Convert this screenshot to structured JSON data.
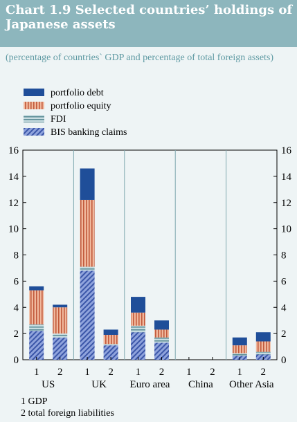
{
  "title": "Chart 1.9 Selected countries’ holdings of Japanese assets",
  "subtitle": "(percentage of countries` GDP and percentage of total foreign assets)",
  "footnotes": [
    "1  GDP",
    "2  total foreign liabilities"
  ],
  "colors": {
    "portfolio_debt": "#1f4e99",
    "portfolio_equity": "#e8a586",
    "fdi": "#9cc0c7",
    "bis": "#5b76c4",
    "title_bar": "#8db6bd",
    "subtitle": "#5f9aa3",
    "background": "#eef4f5"
  },
  "chart_data": {
    "type": "bar",
    "stacked": true,
    "ylim": [
      0,
      16
    ],
    "yticks": [
      0,
      2,
      4,
      6,
      8,
      10,
      12,
      14,
      16
    ],
    "legend_position": "top-left",
    "grid": false,
    "groups": [
      "US",
      "UK",
      "Euro area",
      "China",
      "Other Asia"
    ],
    "bar_labels": [
      "1",
      "2"
    ],
    "categories": [
      "US 1",
      "US 2",
      "UK 1",
      "UK 2",
      "Euro area 1",
      "Euro area 2",
      "China 1",
      "China 2",
      "Other Asia 1",
      "Other Asia 2"
    ],
    "series": [
      {
        "name": "BIS banking claims",
        "key": "bis",
        "values": [
          2.2,
          1.7,
          6.8,
          1.1,
          2.1,
          1.3,
          0,
          0,
          0.3,
          0.4
        ]
      },
      {
        "name": "FDI",
        "key": "fdi",
        "values": [
          0.5,
          0.3,
          0.3,
          0.1,
          0.5,
          0.4,
          0,
          0,
          0.2,
          0.2
        ]
      },
      {
        "name": "portfolio equity",
        "key": "portfolio_equity",
        "values": [
          2.6,
          2.0,
          5.1,
          0.7,
          1.0,
          0.6,
          0,
          0,
          0.6,
          0.8
        ]
      },
      {
        "name": "portfolio debt",
        "key": "portfolio_debt",
        "values": [
          0.3,
          0.2,
          2.4,
          0.4,
          1.2,
          0.7,
          0,
          0,
          0.6,
          0.7
        ]
      }
    ],
    "legend_order": [
      "portfolio debt",
      "portfolio equity",
      "FDI",
      "BIS banking claims"
    ]
  }
}
